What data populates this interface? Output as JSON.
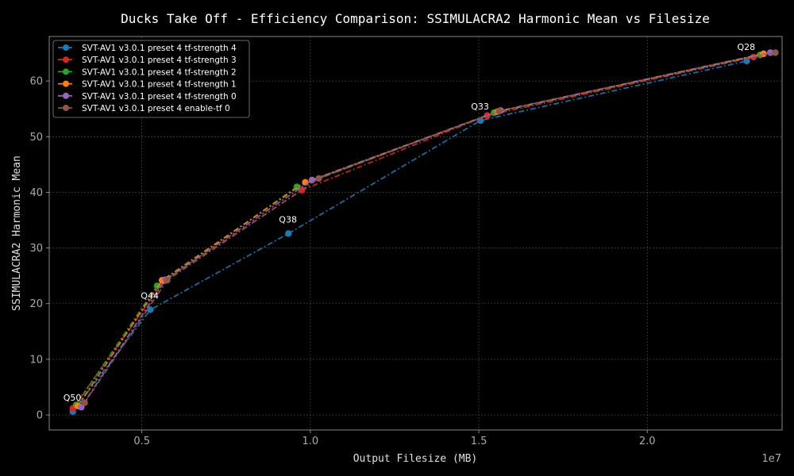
{
  "chart_data": {
    "type": "line",
    "title": "Ducks Take Off - Efficiency Comparison: SSIMULACRA2 Harmonic Mean vs Filesize",
    "xlabel": "Output Filesize (MB)",
    "ylabel": "SSIMULACRA2 Harmonic Mean",
    "x_offset_label": "1e7",
    "xlim": [
      2250000,
      24000000
    ],
    "ylim": [
      -2.7,
      68
    ],
    "x_ticks": [
      5000000,
      10000000,
      15000000,
      20000000
    ],
    "x_tick_labels": [
      "0.5",
      "1.0",
      "1.5",
      "2.0"
    ],
    "y_ticks": [
      0,
      10,
      20,
      30,
      40,
      50,
      60
    ],
    "y_tick_labels": [
      "0",
      "10",
      "20",
      "30",
      "40",
      "50",
      "60"
    ],
    "grid": true,
    "legend_position": "top-left",
    "series": [
      {
        "name": "SVT-AV1 v3.0.1 preset 4 tf-strength 4",
        "color": "#1f77b4",
        "x": [
          2950000,
          5250000,
          9350000,
          15050000,
          22950000
        ],
        "y": [
          0.6,
          18.9,
          32.6,
          52.9,
          63.6
        ]
      },
      {
        "name": "SVT-AV1 v3.0.1 preset 4 tf-strength 3",
        "color": "#d62728",
        "x": [
          2950000,
          5650000,
          9750000,
          15250000,
          23150000
        ],
        "y": [
          1.2,
          24.1,
          40.4,
          53.8,
          64.3
        ]
      },
      {
        "name": "SVT-AV1 v3.0.1 preset 4 tf-strength 2",
        "color": "#2ca02c",
        "x": [
          3050000,
          5450000,
          9600000,
          15450000,
          23350000
        ],
        "y": [
          1.8,
          23.2,
          41.0,
          54.3,
          64.7
        ]
      },
      {
        "name": "SVT-AV1 v3.0.1 preset 4 tf-strength 1",
        "color": "#ff7f0e",
        "x": [
          3100000,
          5600000,
          9850000,
          15550000,
          23450000
        ],
        "y": [
          1.6,
          24.2,
          41.8,
          54.5,
          64.9
        ]
      },
      {
        "name": "SVT-AV1 v3.0.1 preset 4 tf-strength 0",
        "color": "#9467bd",
        "x": [
          3200000,
          5700000,
          10050000,
          15650000,
          23650000
        ],
        "y": [
          1.4,
          24.3,
          42.2,
          54.7,
          65.1
        ]
      },
      {
        "name": "SVT-AV1 v3.0.1 preset 4 enable-tf 0",
        "color": "#8c564b",
        "x": [
          3300000,
          5750000,
          10250000,
          15600000,
          23800000
        ],
        "y": [
          2.2,
          24.2,
          42.5,
          54.6,
          65.1
        ]
      }
    ],
    "annotations": [
      {
        "text": "Q50",
        "x": 2950000,
        "y": 0.6
      },
      {
        "text": "Q44",
        "x": 5250000,
        "y": 18.9
      },
      {
        "text": "Q38",
        "x": 9350000,
        "y": 32.6
      },
      {
        "text": "Q33",
        "x": 15050000,
        "y": 52.9
      },
      {
        "text": "Q28",
        "x": 22950000,
        "y": 63.6
      }
    ]
  }
}
